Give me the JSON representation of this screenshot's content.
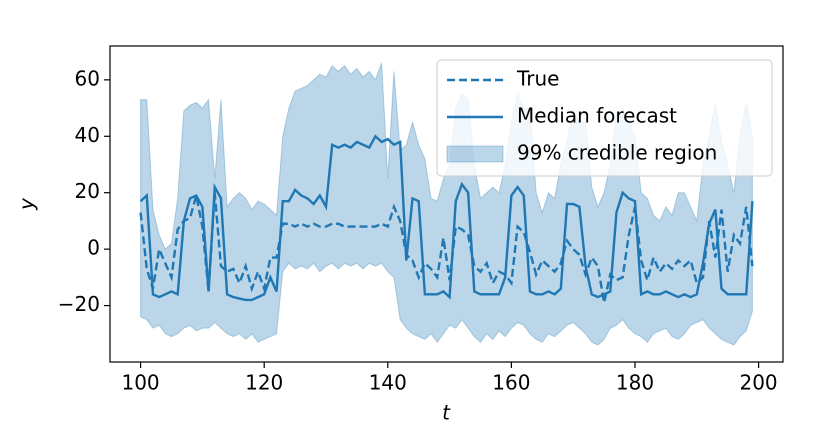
{
  "chart_data": {
    "type": "line",
    "xlabel": "t",
    "ylabel": "y",
    "xlim": [
      95.05,
      203.95
    ],
    "ylim": [
      -40,
      72
    ],
    "xticks": [
      100,
      120,
      140,
      160,
      180,
      200
    ],
    "yticks": [
      {
        "value": -20,
        "label": "−20"
      },
      0,
      20,
      40,
      60
    ],
    "legend": "upper right",
    "x": [
      100,
      101,
      102,
      103,
      104,
      105,
      106,
      107,
      108,
      109,
      110,
      111,
      112,
      113,
      114,
      115,
      116,
      117,
      118,
      119,
      120,
      121,
      122,
      123,
      124,
      125,
      126,
      127,
      128,
      129,
      130,
      131,
      132,
      133,
      134,
      135,
      136,
      137,
      138,
      139,
      140,
      141,
      142,
      143,
      144,
      145,
      146,
      147,
      148,
      149,
      150,
      151,
      152,
      153,
      154,
      155,
      156,
      157,
      158,
      159,
      160,
      161,
      162,
      163,
      164,
      165,
      166,
      167,
      168,
      169,
      170,
      171,
      172,
      173,
      174,
      175,
      176,
      177,
      178,
      179,
      180,
      181,
      182,
      183,
      184,
      185,
      186,
      187,
      188,
      189,
      190,
      191,
      192,
      193,
      194,
      195,
      196,
      197,
      198,
      199
    ],
    "series": [
      {
        "name": "True",
        "color": "#1f77b4",
        "style": "dashed",
        "values": [
          13,
          -7,
          -14,
          0,
          -5,
          -10,
          7,
          10,
          11,
          19,
          8,
          -15,
          20,
          -6,
          -8,
          -7,
          -12,
          -6,
          -14,
          -8,
          -14,
          -3,
          -3,
          9,
          9,
          8,
          9,
          8,
          9,
          8,
          8,
          9,
          9,
          8,
          8,
          8,
          8,
          8,
          8,
          9,
          8,
          15,
          10,
          -2,
          -4,
          -10,
          -5,
          -7,
          -10,
          4,
          -11,
          8,
          7,
          5,
          -6,
          -8,
          -5,
          -12,
          -8,
          -9,
          -12,
          8,
          6,
          -1,
          -9,
          -4,
          -6,
          -8,
          -5,
          3,
          0,
          -2,
          -9,
          -3,
          -6,
          -19,
          -9,
          -11,
          -10,
          5,
          15,
          -4,
          -11,
          -3,
          -8,
          -5,
          -7,
          -4,
          -6,
          -4,
          -12,
          -10,
          10,
          -3,
          14,
          -8,
          5,
          2,
          15,
          -6
        ]
      },
      {
        "name": "Median forecast",
        "color": "#1f77b4",
        "style": "solid",
        "values": [
          17,
          19,
          -16,
          -17,
          -16,
          -15,
          -16,
          10,
          18,
          19,
          15,
          -15,
          22,
          18,
          -16,
          -17,
          -17.5,
          -18,
          -18,
          -17,
          -16,
          -10,
          -15,
          17,
          17,
          21,
          19,
          18,
          16,
          19,
          15,
          37,
          36,
          37,
          36,
          38,
          37,
          36,
          40,
          38,
          39,
          37,
          38,
          -4,
          18,
          17,
          -16,
          -16,
          -16,
          -15,
          -17,
          17,
          23,
          20,
          -15,
          -16,
          -16,
          -16,
          -16,
          -10,
          19,
          22,
          19,
          -15,
          -16,
          -16,
          -15,
          -16,
          -14,
          16,
          16,
          15,
          -6,
          -16,
          -17,
          -16,
          -15,
          13,
          20,
          18,
          17,
          -16,
          -15,
          -16,
          -16,
          -15,
          -16,
          -17,
          -16,
          -17,
          -16,
          -5,
          9,
          14,
          -14,
          -16,
          -16,
          -16,
          -16,
          17
        ]
      },
      {
        "name": "99% credible region",
        "color": "#1f77b4",
        "style": "band",
        "lower": [
          -24,
          -25,
          -28,
          -27,
          -30,
          -31,
          -30,
          -28,
          -27,
          -29,
          -28,
          -28,
          -26,
          -28,
          -30,
          -31,
          -30,
          -32,
          -30,
          -33,
          -32,
          -31,
          -30,
          -8,
          -5,
          -7,
          -6,
          -7,
          -5,
          -8,
          -6,
          -5,
          -7,
          -5,
          -6,
          -5,
          -7,
          -5,
          -6,
          -5,
          -8,
          -10,
          -25,
          -28,
          -30,
          -31,
          -32,
          -30,
          -33,
          -30,
          -27,
          -28,
          -25,
          -28,
          -31,
          -33,
          -30,
          -32,
          -29,
          -31,
          -28,
          -26,
          -27,
          -30,
          -32,
          -33,
          -30,
          -31,
          -29,
          -27,
          -26,
          -28,
          -30,
          -33,
          -34,
          -32,
          -28,
          -27,
          -25,
          -28,
          -30,
          -31,
          -33,
          -30,
          -29,
          -28,
          -31,
          -32,
          -30,
          -27,
          -26,
          -25,
          -28,
          -30,
          -32,
          -33,
          -34,
          -31,
          -29,
          -22
        ],
        "upper": [
          53,
          53,
          14,
          5,
          0,
          2,
          18,
          49,
          51,
          52,
          50,
          53,
          25,
          53,
          15,
          18,
          20,
          18,
          14,
          17,
          16,
          14,
          12,
          40,
          50,
          56,
          57,
          58,
          60,
          62,
          61,
          65,
          63,
          65,
          62,
          64,
          61,
          63,
          60,
          66,
          25,
          63,
          35,
          37,
          45,
          37,
          32,
          18,
          17,
          25,
          30,
          50,
          55,
          53,
          30,
          18,
          20,
          22,
          20,
          30,
          45,
          55,
          50,
          50,
          20,
          13,
          20,
          18,
          30,
          38,
          50,
          45,
          45,
          22,
          15,
          20,
          30,
          48,
          50,
          45,
          40,
          20,
          18,
          12,
          10,
          15,
          12,
          20,
          20,
          15,
          10,
          30,
          40,
          52,
          38,
          30,
          20,
          40,
          52,
          40
        ]
      }
    ]
  }
}
